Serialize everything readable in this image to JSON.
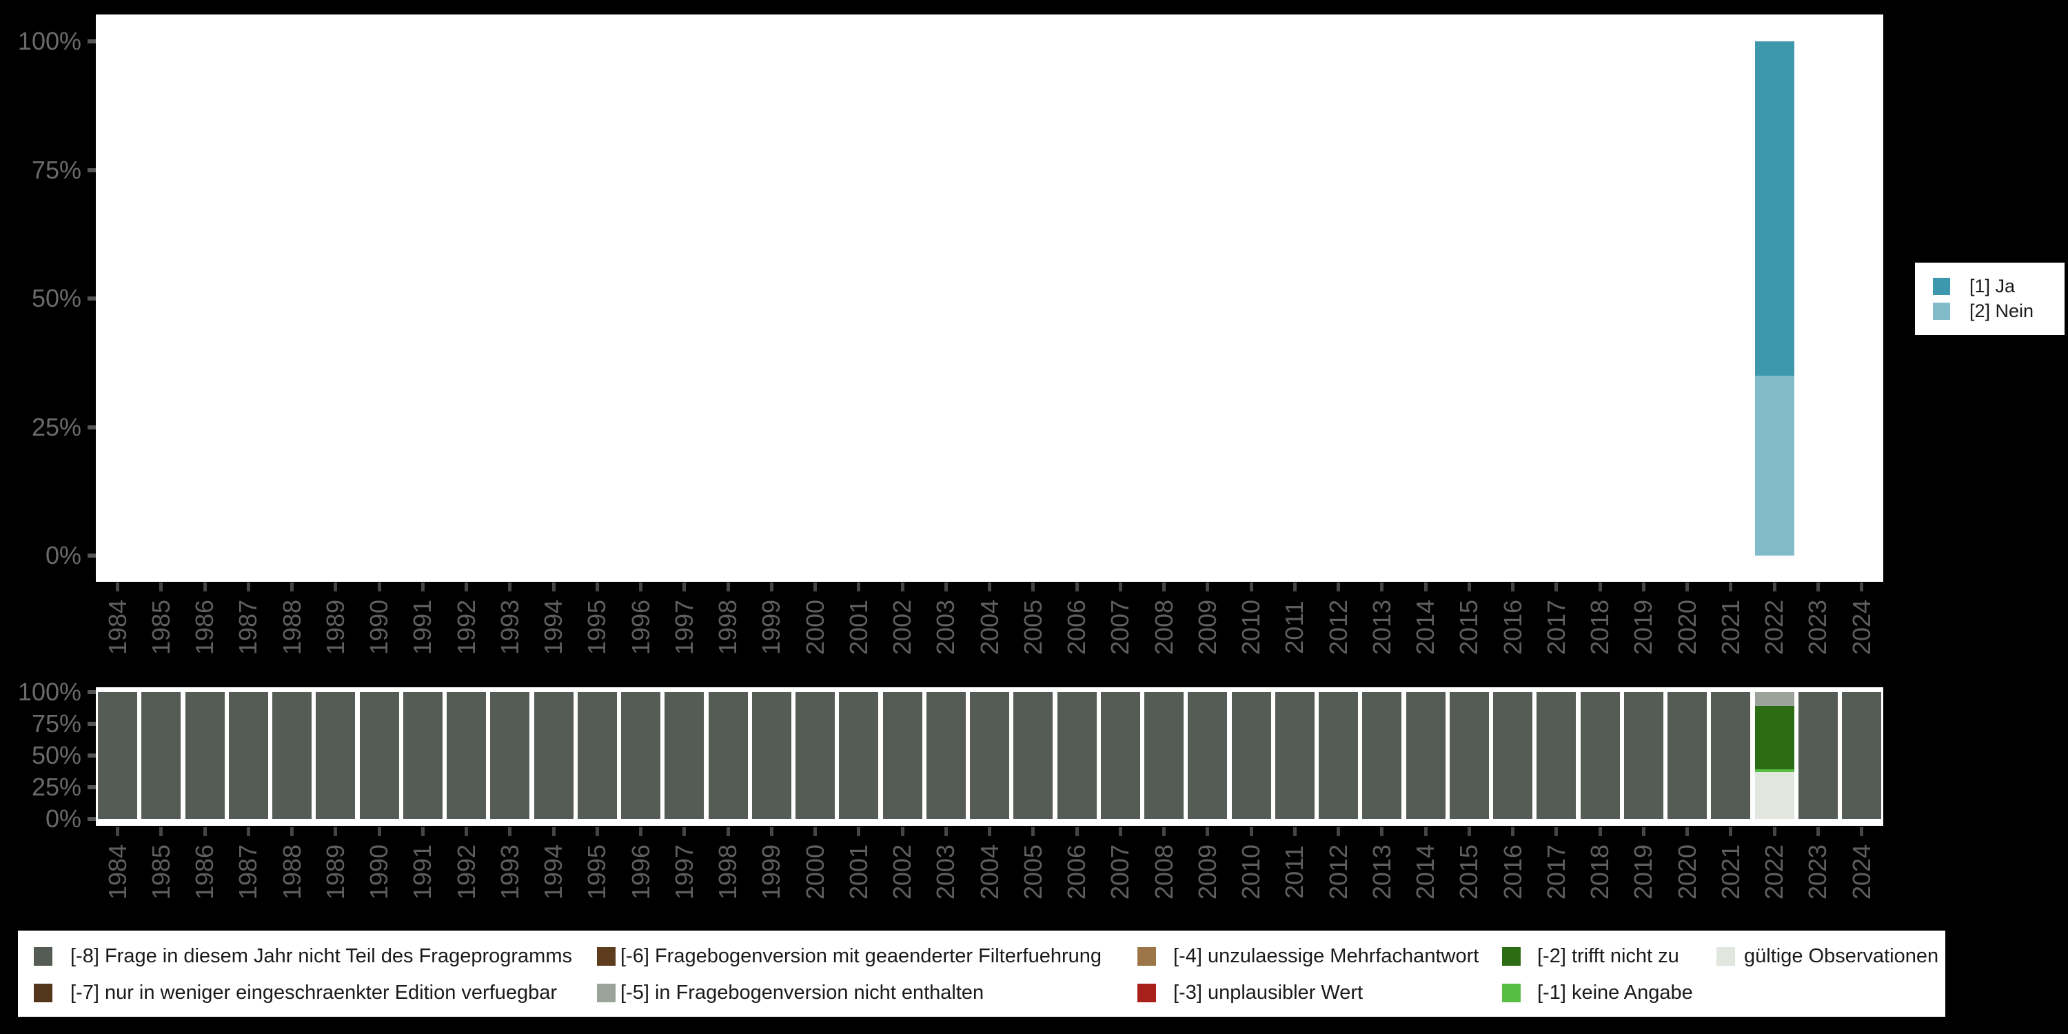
{
  "background": "#000000",
  "colors": {
    "plot_bg": "#ffffff",
    "axis_tick": "#555555",
    "y_label": "#6a6a6a",
    "x_label": "#5f5f5f",
    "legend_text": "#1a1a1a",
    "ja": "#3d97ad",
    "nein": "#82bcca",
    "m8": "#545c55",
    "m7": "#54361c",
    "m6": "#5e3d1f",
    "m5": "#9ba39a",
    "m4": "#9c7648",
    "m3": "#a8201a",
    "m2": "#2c6d13",
    "m1": "#56be43",
    "valid": "#e1e6df"
  },
  "chart_data": [
    {
      "id": "main-variable-chart",
      "type": "bar",
      "stacking": "percent",
      "title": "",
      "ylim": [
        0,
        100
      ],
      "grid": false,
      "y_tick_labels": [
        "100%",
        "75%",
        "50%",
        "25%",
        "0%"
      ],
      "categories": [
        "1984",
        "1985",
        "1986",
        "1987",
        "1988",
        "1989",
        "1990",
        "1991",
        "1992",
        "1993",
        "1994",
        "1995",
        "1996",
        "1997",
        "1998",
        "1999",
        "2000",
        "2001",
        "2002",
        "2003",
        "2004",
        "2005",
        "2006",
        "2007",
        "2008",
        "2009",
        "2010",
        "2011",
        "2012",
        "2013",
        "2014",
        "2015",
        "2016",
        "2017",
        "2018",
        "2019",
        "2020",
        "2021",
        "2022",
        "2023",
        "2024"
      ],
      "legend_position": "right",
      "legend": [
        {
          "label": "[1] Ja",
          "color_key": "ja"
        },
        {
          "label": "[2] Nein",
          "color_key": "nein"
        }
      ],
      "bars": {
        "2022": [
          {
            "color_key": "ja",
            "label": "[1] Ja",
            "pct": 65
          },
          {
            "color_key": "nein",
            "label": "[2] Nein",
            "pct": 35
          }
        ]
      }
    },
    {
      "id": "missings-chart",
      "type": "bar",
      "stacking": "percent",
      "title": "",
      "ylim": [
        0,
        100
      ],
      "grid": false,
      "y_tick_labels": [
        "100%",
        "75%",
        "50%",
        "25%",
        "0%"
      ],
      "categories": [
        "1984",
        "1985",
        "1986",
        "1987",
        "1988",
        "1989",
        "1990",
        "1991",
        "1992",
        "1993",
        "1994",
        "1995",
        "1996",
        "1997",
        "1998",
        "1999",
        "2000",
        "2001",
        "2002",
        "2003",
        "2004",
        "2005",
        "2006",
        "2007",
        "2008",
        "2009",
        "2010",
        "2011",
        "2012",
        "2013",
        "2014",
        "2015",
        "2016",
        "2017",
        "2018",
        "2019",
        "2020",
        "2021",
        "2022",
        "2023",
        "2024"
      ],
      "legend_position": "bottom",
      "bars_default": [
        {
          "color_key": "m8",
          "label": "[-8] Frage in diesem Jahr nicht Teil des Frageprogramms",
          "pct": 100
        }
      ],
      "bars": {
        "2022": [
          {
            "color_key": "m5",
            "label": "[-5] in Fragebogenversion nicht enthalten",
            "pct": 11
          },
          {
            "color_key": "m2",
            "label": "[-2] trifft nicht zu",
            "pct": 50
          },
          {
            "color_key": "m1",
            "label": "[-1] keine Angabe",
            "pct": 2
          },
          {
            "color_key": "valid",
            "label": "gültige Observationen",
            "pct": 37
          }
        ]
      },
      "legend": [
        {
          "label": "[-8] Frage in diesem Jahr nicht Teil des Frageprogramms",
          "color_key": "m8",
          "col": 0,
          "row": 0
        },
        {
          "label": "[-7] nur in weniger eingeschraenkter Edition verfuegbar",
          "color_key": "m7",
          "col": 0,
          "row": 1
        },
        {
          "label": "[-6] Fragebogenversion mit geaenderter Filterfuehrung",
          "color_key": "m6",
          "col": 1,
          "row": 0
        },
        {
          "label": "[-5] in Fragebogenversion nicht enthalten",
          "color_key": "m5",
          "col": 1,
          "row": 1
        },
        {
          "label": "[-4] unzulaessige Mehrfachantwort",
          "color_key": "m4",
          "col": 2,
          "row": 0
        },
        {
          "label": "[-3] unplausibler Wert",
          "color_key": "m3",
          "col": 2,
          "row": 1
        },
        {
          "label": "[-2] trifft nicht zu",
          "color_key": "m2",
          "col": 3,
          "row": 0
        },
        {
          "label": "[-1] keine Angabe",
          "color_key": "m1",
          "col": 3,
          "row": 1
        },
        {
          "label": "gültige Observationen",
          "color_key": "valid",
          "col": 4,
          "row": 0
        }
      ]
    }
  ]
}
